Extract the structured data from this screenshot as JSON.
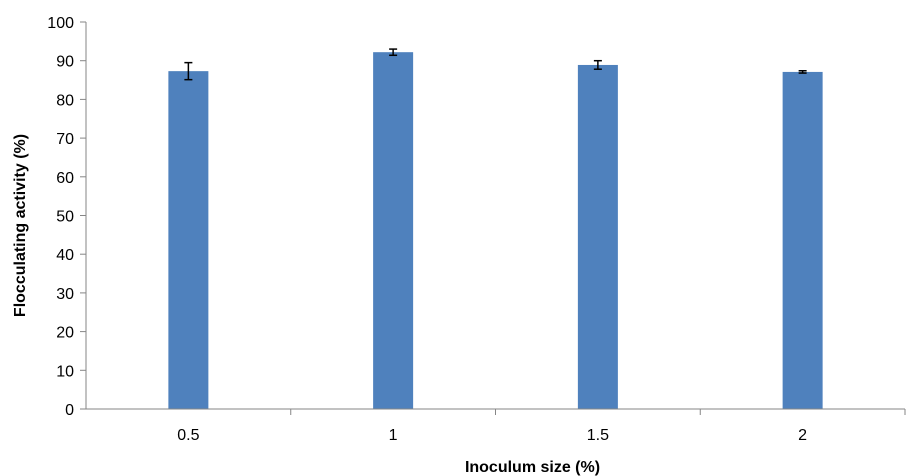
{
  "chart_data": {
    "type": "bar",
    "title": "",
    "xlabel": "Inoculum size (%)",
    "ylabel": "Flocculating activity (%)",
    "categories": [
      "0.5",
      "1",
      "1.5",
      "2"
    ],
    "values": [
      87.3,
      92.2,
      88.9,
      87.1
    ],
    "error": [
      2.2,
      0.8,
      1.1,
      0.3
    ],
    "ylim": [
      0,
      100
    ],
    "yticks": [
      "0",
      "10",
      "20",
      "30",
      "40",
      "50",
      "60",
      "70",
      "80",
      "90",
      "100"
    ],
    "grid": false,
    "legend": "none",
    "bar_color": "#4F81BD",
    "error_bar_color": "#000000"
  }
}
